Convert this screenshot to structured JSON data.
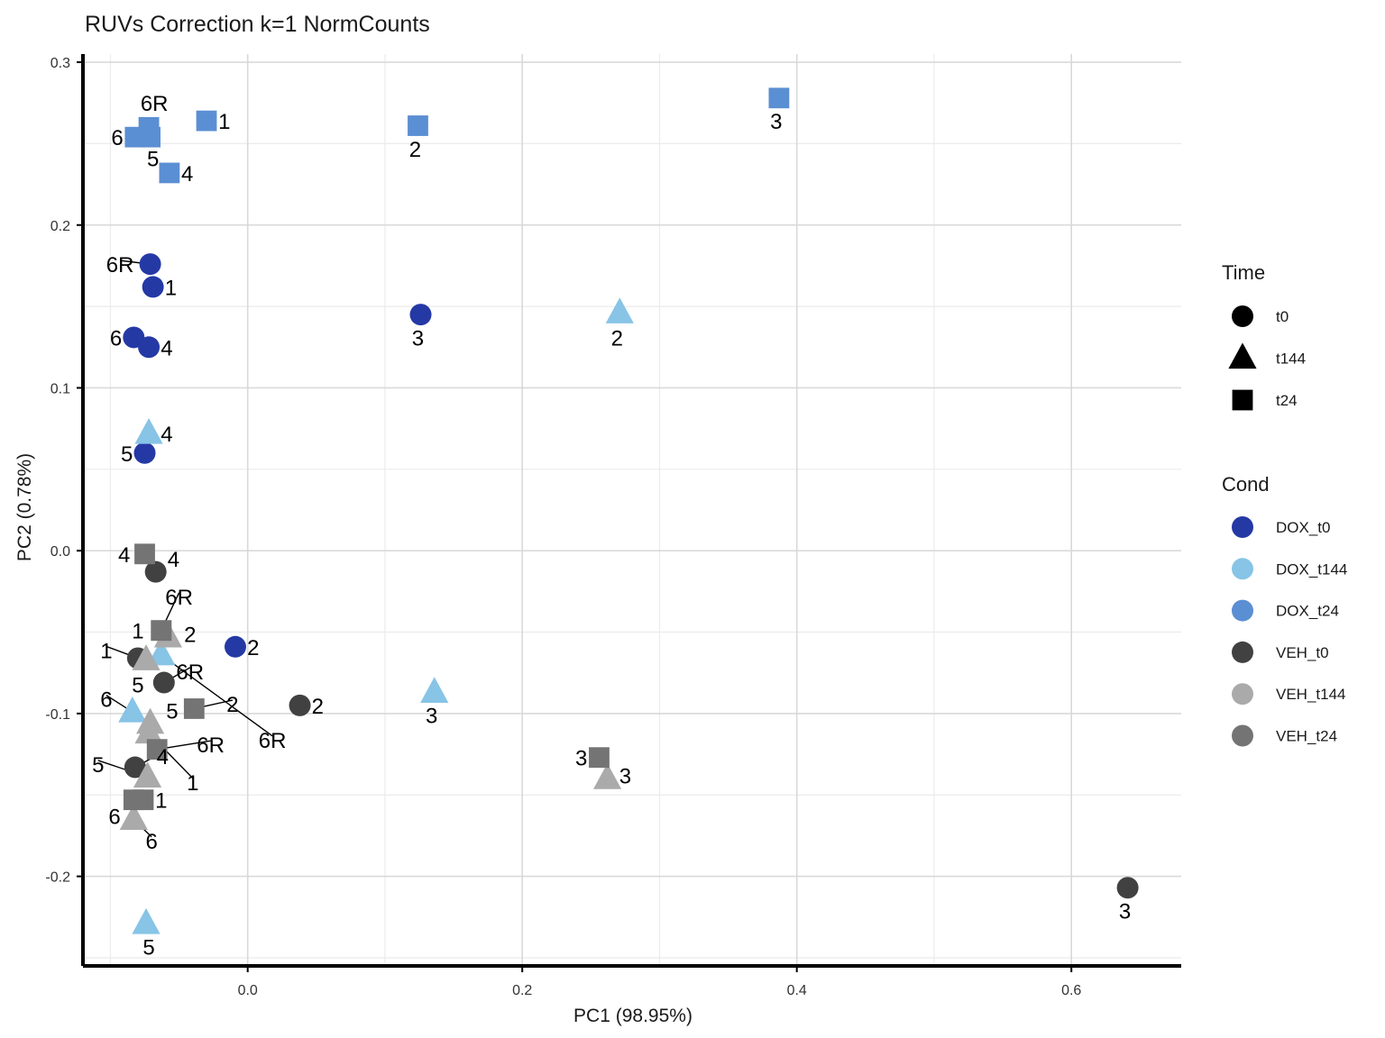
{
  "chart_data": {
    "type": "scatter",
    "title": "RUVs Correction k=1 NormCounts",
    "xlabel": "PC1 (98.95%)",
    "ylabel": "PC2 (0.78%)",
    "xlim": [
      -0.12,
      0.68
    ],
    "ylim": [
      -0.255,
      0.305
    ],
    "x_ticks": [
      {
        "value": 0.0,
        "label": "0.0"
      },
      {
        "value": 0.2,
        "label": "0.2"
      },
      {
        "value": 0.4,
        "label": "0.4"
      },
      {
        "value": 0.6,
        "label": "0.6"
      }
    ],
    "y_ticks": [
      {
        "value": 0.3,
        "label": "0.3"
      },
      {
        "value": 0.2,
        "label": "0.2"
      },
      {
        "value": 0.1,
        "label": "0.1"
      },
      {
        "value": 0.0,
        "label": "0.0"
      },
      {
        "value": -0.1,
        "label": "-0.1"
      },
      {
        "value": -0.2,
        "label": "-0.2"
      }
    ],
    "grid": true,
    "legend_position": "right",
    "legend_time": {
      "title": "Time",
      "items": [
        {
          "label": "t0",
          "shape": "circle"
        },
        {
          "label": "t144",
          "shape": "triangle"
        },
        {
          "label": "t24",
          "shape": "square"
        }
      ]
    },
    "legend_cond": {
      "title": "Cond",
      "items": [
        {
          "label": "DOX_t0",
          "color": "#2539A5"
        },
        {
          "label": "DOX_t144",
          "color": "#87C4E6"
        },
        {
          "label": "DOX_t24",
          "color": "#5B8FD3"
        },
        {
          "label": "VEH_t0",
          "color": "#414141"
        },
        {
          "label": "VEH_t144",
          "color": "#AAAAAA"
        },
        {
          "label": "VEH_t24",
          "color": "#747474"
        }
      ]
    },
    "points": [
      {
        "cond": "DOX_t24",
        "time": "t24",
        "x": -0.082,
        "y": 0.254,
        "label": "6",
        "lx": -0.095,
        "ly": 0.254
      },
      {
        "cond": "DOX_t24",
        "time": "t24",
        "x": -0.072,
        "y": 0.26,
        "label": "6R",
        "lx": -0.068,
        "ly": 0.275
      },
      {
        "cond": "DOX_t24",
        "time": "t24",
        "x": -0.071,
        "y": 0.254,
        "label": "5",
        "lx": -0.069,
        "ly": 0.241
      },
      {
        "cond": "DOX_t24",
        "time": "t24",
        "x": -0.03,
        "y": 0.264,
        "label": "1",
        "lx": -0.017,
        "ly": 0.264
      },
      {
        "cond": "DOX_t24",
        "time": "t24",
        "x": -0.057,
        "y": 0.232,
        "label": "4",
        "lx": -0.044,
        "ly": 0.232
      },
      {
        "cond": "DOX_t24",
        "time": "t24",
        "x": 0.124,
        "y": 0.261,
        "label": "2",
        "lx": 0.122,
        "ly": 0.247
      },
      {
        "cond": "DOX_t24",
        "time": "t24",
        "x": 0.387,
        "y": 0.278,
        "label": "3",
        "lx": 0.385,
        "ly": 0.264
      },
      {
        "cond": "DOX_t0",
        "time": "t0",
        "x": -0.071,
        "y": 0.176,
        "label": "6R",
        "lx": -0.093,
        "ly": 0.176
      },
      {
        "cond": "DOX_t0",
        "time": "t0",
        "x": -0.069,
        "y": 0.162,
        "label": "1",
        "lx": -0.056,
        "ly": 0.162
      },
      {
        "cond": "DOX_t0",
        "time": "t0",
        "x": -0.083,
        "y": 0.131,
        "label": "6",
        "lx": -0.096,
        "ly": 0.131
      },
      {
        "cond": "DOX_t0",
        "time": "t0",
        "x": -0.072,
        "y": 0.125,
        "label": "4",
        "lx": -0.059,
        "ly": 0.125
      },
      {
        "cond": "DOX_t0",
        "time": "t0",
        "x": -0.075,
        "y": 0.06,
        "label": "5",
        "lx": -0.088,
        "ly": 0.06
      },
      {
        "cond": "DOX_t0",
        "time": "t0",
        "x": 0.126,
        "y": 0.145,
        "label": "3",
        "lx": 0.124,
        "ly": 0.131
      },
      {
        "cond": "DOX_t0",
        "time": "t0",
        "x": -0.009,
        "y": -0.059,
        "label": "2",
        "lx": 0.004,
        "ly": -0.059
      },
      {
        "cond": "DOX_t144",
        "time": "t144",
        "x": 0.271,
        "y": 0.146,
        "label": "2",
        "lx": 0.269,
        "ly": 0.131
      },
      {
        "cond": "DOX_t144",
        "time": "t144",
        "x": -0.072,
        "y": 0.072,
        "label": "4",
        "lx": -0.059,
        "ly": 0.072
      },
      {
        "cond": "DOX_t144",
        "time": "t144",
        "x": 0.136,
        "y": -0.087,
        "label": "3",
        "lx": 0.134,
        "ly": -0.101
      },
      {
        "cond": "DOX_t144",
        "time": "t144",
        "x": -0.063,
        "y": -0.064,
        "label": "6R",
        "lx": 0.018,
        "ly": -0.116
      },
      {
        "cond": "DOX_t144",
        "time": "t144",
        "x": -0.084,
        "y": -0.099,
        "label": "6",
        "lx": -0.103,
        "ly": -0.091
      },
      {
        "cond": "DOX_t144",
        "time": "t144",
        "x": -0.074,
        "y": -0.229,
        "label": "5",
        "lx": -0.072,
        "ly": -0.243
      },
      {
        "cond": "VEH_t0",
        "time": "t0",
        "x": -0.067,
        "y": -0.013,
        "label": "4",
        "lx": -0.054,
        "ly": -0.005
      },
      {
        "cond": "VEH_t0",
        "time": "t0",
        "x": -0.08,
        "y": -0.066,
        "label": "1",
        "lx": -0.103,
        "ly": -0.061
      },
      {
        "cond": "VEH_t0",
        "time": "t0",
        "x": -0.061,
        "y": -0.081,
        "label": "6R",
        "lx": -0.042,
        "ly": -0.074
      },
      {
        "cond": "VEH_t0",
        "time": "t0",
        "x": 0.038,
        "y": -0.095,
        "label": "2",
        "lx": 0.051,
        "ly": -0.095
      },
      {
        "cond": "VEH_t0",
        "time": "t0",
        "x": -0.082,
        "y": -0.133,
        "label": "4",
        "lx": -0.062,
        "ly": -0.126
      },
      {
        "cond": "VEH_t0",
        "time": "t0",
        "x": 0.641,
        "y": -0.207,
        "label": "3",
        "lx": 0.639,
        "ly": -0.221
      },
      {
        "cond": "VEH_t144",
        "time": "t144",
        "x": -0.058,
        "y": -0.053,
        "label": "2",
        "lx": -0.042,
        "ly": -0.051
      },
      {
        "cond": "VEH_t144",
        "time": "t144",
        "x": -0.074,
        "y": -0.067,
        "label": "5",
        "lx": -0.08,
        "ly": -0.082
      },
      {
        "cond": "VEH_t144",
        "time": "t144",
        "x": -0.071,
        "y": -0.106,
        "label": "5",
        "lx": -0.055,
        "ly": -0.098
      },
      {
        "cond": "VEH_t144",
        "time": "t144",
        "x": -0.072,
        "y": -0.112,
        "label": "1",
        "lx": -0.04,
        "ly": -0.142
      },
      {
        "cond": "VEH_t144",
        "time": "t144",
        "x": -0.073,
        "y": -0.139,
        "label": "5",
        "lx": -0.109,
        "ly": -0.131
      },
      {
        "cond": "VEH_t144",
        "time": "t144",
        "x": -0.083,
        "y": -0.165,
        "label": "6",
        "lx": -0.07,
        "ly": -0.178
      },
      {
        "cond": "VEH_t144",
        "time": "t144",
        "x": 0.262,
        "y": -0.14,
        "label": "3",
        "lx": 0.275,
        "ly": -0.138
      },
      {
        "cond": "VEH_t24",
        "time": "t24",
        "x": -0.075,
        "y": -0.002,
        "label": "4",
        "lx": -0.09,
        "ly": -0.002
      },
      {
        "cond": "VEH_t24",
        "time": "t24",
        "x": -0.063,
        "y": -0.049,
        "label": "1",
        "lx": -0.08,
        "ly": -0.049
      },
      {
        "cond": "VEH_t24",
        "time": "t24",
        "x": -0.063,
        "y": -0.049,
        "label": "6R",
        "lx": -0.05,
        "ly": -0.028
      },
      {
        "cond": "VEH_t24",
        "time": "t24",
        "x": -0.039,
        "y": -0.097,
        "label": "2",
        "lx": -0.011,
        "ly": -0.094
      },
      {
        "cond": "VEH_t24",
        "time": "t24",
        "x": -0.066,
        "y": -0.122,
        "label": "6R",
        "lx": -0.027,
        "ly": -0.119
      },
      {
        "cond": "VEH_t24",
        "time": "t24",
        "x": -0.076,
        "y": -0.153,
        "label": "1",
        "lx": -0.063,
        "ly": -0.153
      },
      {
        "cond": "VEH_t24",
        "time": "t24",
        "x": 0.256,
        "y": -0.127,
        "label": "3",
        "lx": 0.243,
        "ly": -0.127
      },
      {
        "cond": "VEH_t24",
        "time": "t24",
        "x": -0.083,
        "y": -0.153,
        "label": "6",
        "lx": -0.097,
        "ly": -0.163
      }
    ]
  }
}
